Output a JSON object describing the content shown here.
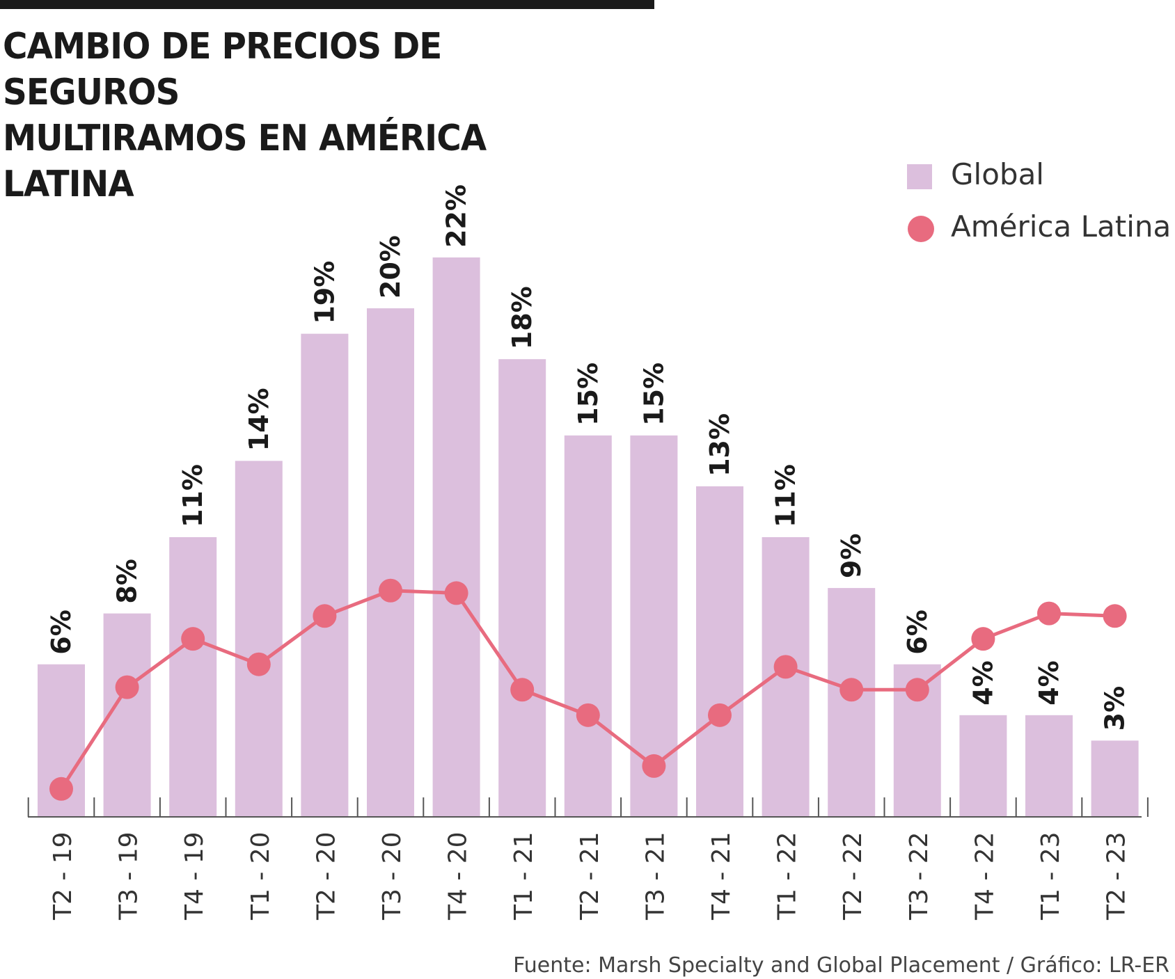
{
  "title": {
    "line1": "CAMBIO DE PRECIOS DE SEGUROS",
    "line2": "MULTIRAMOS EN AMÉRICA LATINA"
  },
  "legend": {
    "global": "Global",
    "latam": "América Latina"
  },
  "source": "Fuente: Marsh Specialty and Global Placement / Gráfico: LR-ER",
  "colors": {
    "bar": "#dcbfdd",
    "line": "#e86b7f",
    "axis": "#555555",
    "text": "#1a1a1a"
  },
  "chart_data": {
    "type": "bar",
    "title": "CAMBIO DE PRECIOS DE SEGUROS MULTIRAMOS EN AMÉRICA LATINA",
    "categories": [
      "T2 - 19",
      "T3 - 19",
      "T4 - 19",
      "T1 - 20",
      "T2 - 20",
      "T3 - 20",
      "T4 - 20",
      "T1 - 21",
      "T2 - 21",
      "T3 - 21",
      "T4 - 21",
      "T1 - 22",
      "T2 - 22",
      "T3 - 22",
      "T4 - 22",
      "T1 - 23",
      "T2 - 23"
    ],
    "ylim": [
      0,
      22
    ],
    "series": [
      {
        "name": "Global",
        "kind": "bar",
        "values": [
          6,
          8,
          11,
          14,
          19,
          20,
          22,
          18,
          15,
          15,
          13,
          11,
          9,
          6,
          4,
          4,
          3
        ],
        "labels": [
          "6%",
          "8%",
          "11%",
          "14%",
          "19%",
          "20%",
          "22%",
          "18%",
          "15%",
          "15%",
          "13%",
          "11%",
          "9%",
          "6%",
          "4%",
          "4%",
          "3%"
        ]
      },
      {
        "name": "América Latina",
        "kind": "line",
        "values": [
          1.1,
          5.1,
          7.0,
          6.0,
          7.9,
          8.9,
          8.8,
          5.0,
          4.0,
          2.0,
          4.0,
          5.9,
          5.0,
          5.0,
          7.0,
          8.0,
          7.9
        ]
      }
    ],
    "xlabel": "",
    "ylabel": "",
    "grid": false,
    "legend_position": "top-right"
  }
}
